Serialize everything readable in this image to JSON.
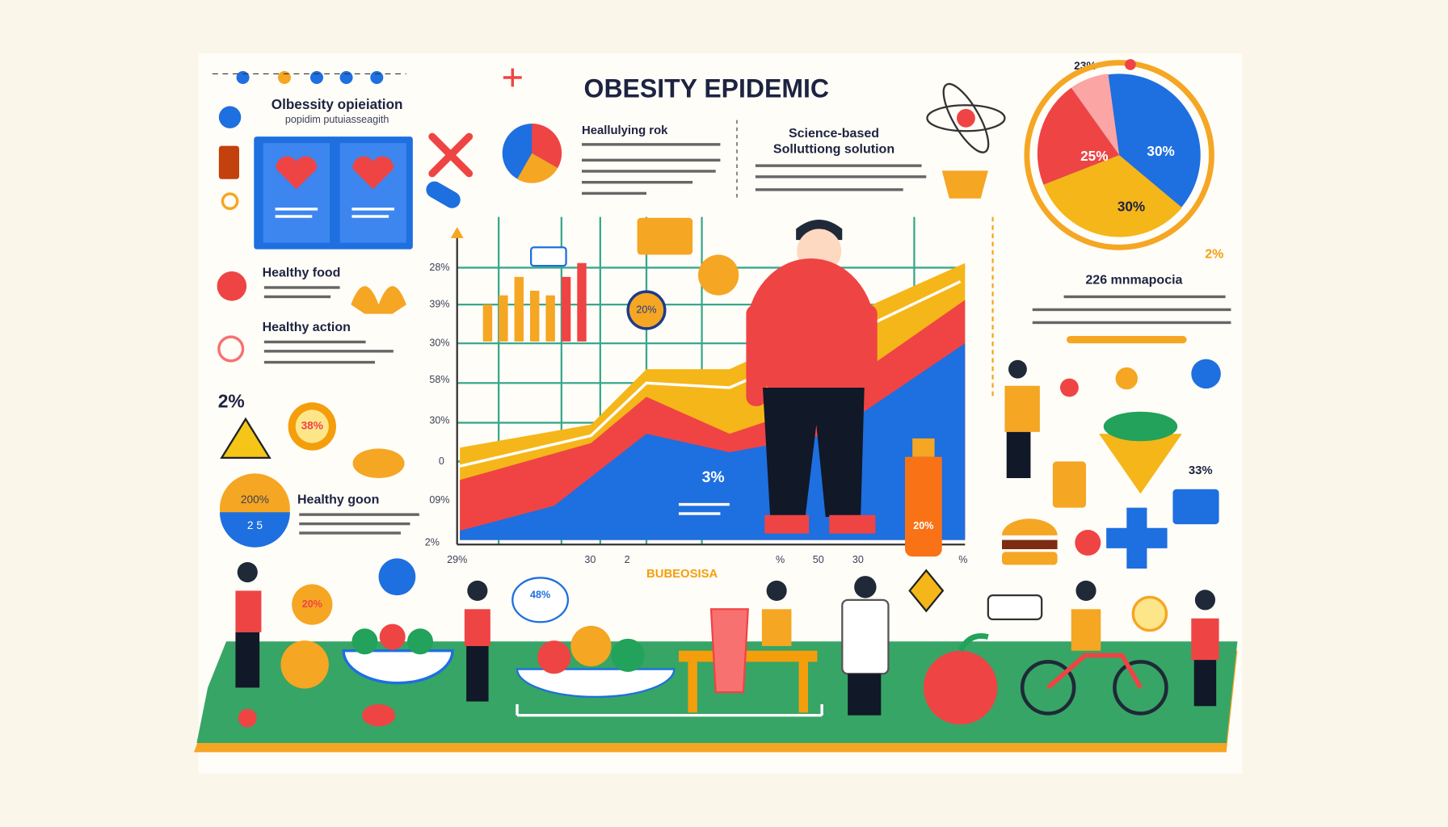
{
  "header": {
    "title": "OBESITY EPIDEMIC"
  },
  "panels": {
    "population": {
      "title": "Olbessity opieiation",
      "subtitle": "popidim putuiasseagith"
    },
    "risk": {
      "title": "Heallulying rok"
    },
    "science": {
      "title": "Science-based",
      "subtitle": "Solluttiong solution"
    },
    "food": {
      "title": "Healthy food"
    },
    "action": {
      "title": "Healthy action"
    },
    "goon": {
      "title": "Healthy goon",
      "badge_top": "200%",
      "badge_bottom": "2 5"
    },
    "stat": {
      "title": "226 mnmapocia"
    }
  },
  "chart": {
    "y_labels": [
      "28%",
      "39%",
      "30%",
      "58%",
      "30%",
      "0",
      "09%",
      "2%"
    ],
    "x_labels": [
      "29%",
      "30",
      "2",
      "%",
      "50",
      "30",
      "%"
    ],
    "caption": "BUBEOSISA",
    "callouts": [
      "3%",
      "20%",
      "20%",
      "48%"
    ]
  },
  "pie": {
    "top_label": "23%",
    "slices": [
      "25%",
      "30%",
      "30%"
    ],
    "side_label": "2%"
  },
  "misc": {
    "left_percent": "2%",
    "gear_label": "38%",
    "right_percent": "33%",
    "bottle_label": "20%"
  }
}
